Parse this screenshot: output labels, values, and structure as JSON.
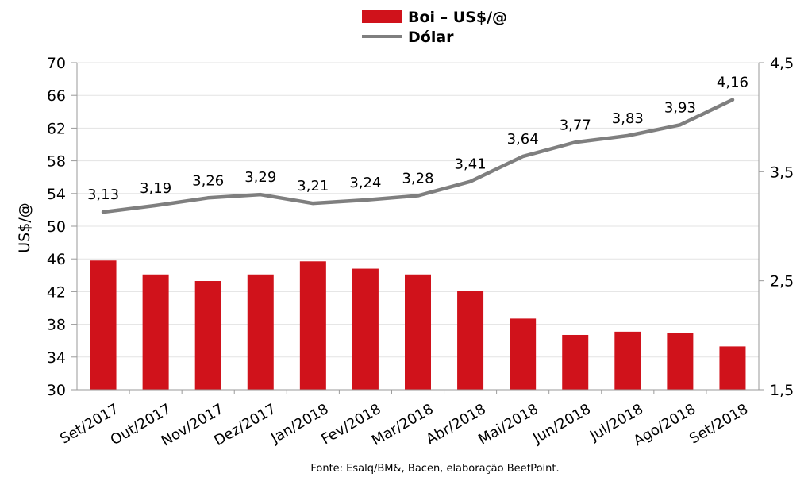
{
  "chart_data": {
    "type": "bar",
    "categories": [
      "Set/2017",
      "Out/2017",
      "Nov/2017",
      "Dez/2017",
      "Jan/2018",
      "Fev/2018",
      "Mar/2018",
      "Abr/2018",
      "Mai/2018",
      "Jun/2018",
      "Jul/2018",
      "Ago/2018",
      "Set/2018"
    ],
    "series": [
      {
        "name": "Boi – US$/@",
        "type": "bar",
        "axis": "left",
        "color": "#d0121b",
        "values": [
          45.8,
          44.1,
          43.3,
          44.1,
          45.7,
          44.8,
          44.1,
          42.1,
          38.7,
          36.7,
          37.1,
          36.9,
          35.3
        ]
      },
      {
        "name": "Dólar",
        "type": "line",
        "axis": "right",
        "color": "#7f7f7f",
        "values": [
          3.13,
          3.19,
          3.26,
          3.29,
          3.21,
          3.24,
          3.28,
          3.41,
          3.64,
          3.77,
          3.83,
          3.93,
          4.16
        ],
        "labels": [
          "3,13",
          "3,19",
          "3,26",
          "3,29",
          "3,21",
          "3,24",
          "3,28",
          "3,41",
          "3,64",
          "3,77",
          "3,83",
          "3,93",
          "4,16"
        ]
      }
    ],
    "ylabel": "US$/@",
    "ylim": [
      30,
      70
    ],
    "yticks": [
      "30",
      "34",
      "38",
      "42",
      "46",
      "50",
      "54",
      "58",
      "62",
      "66",
      "70"
    ],
    "y2lim": [
      1.5,
      4.5
    ],
    "y2ticks": [
      "1,5",
      "2,5",
      "3,5",
      "4,5"
    ],
    "legend_position": "top-center",
    "grid": "horizontal",
    "source": "Fonte: Esalq/BM&, Bacen, elaboração BeefPoint."
  }
}
